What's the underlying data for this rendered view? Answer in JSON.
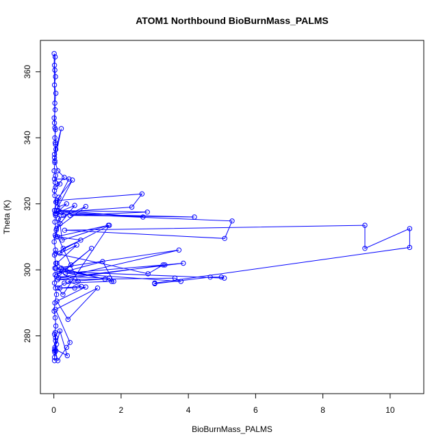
{
  "chart_data": {
    "type": "scatter",
    "title": "ATOM1 Northbound BioBurnMass_PALMS",
    "xlabel": "BioBurnMass_PALMS",
    "ylabel": "Theta (K)",
    "xlim": [
      -0.4,
      11.0
    ],
    "ylim": [
      262.5,
      369.5
    ],
    "xticks": [
      0,
      2,
      4,
      6,
      8,
      10
    ],
    "yticks": [
      280,
      300,
      320,
      340,
      360
    ],
    "grid": false,
    "legend": "none",
    "color": "#0000ff",
    "marker": "open-circle",
    "connected": true,
    "series": [
      {
        "x": [
          0.02,
          0.03,
          0.05,
          0.02,
          0.06,
          0.04,
          0.01,
          0.03,
          0.08,
          0.05,
          0.02,
          0.04,
          0.03,
          0.06,
          0.02,
          0.05,
          0.01,
          0.04,
          0.07,
          0.03,
          0.05,
          0.02,
          0.06,
          0.03,
          0.02,
          0.04,
          0.05,
          0.01,
          0.03,
          0.02,
          0.06,
          0.04,
          0.03,
          0.05,
          0.02,
          0.01,
          0.04,
          0.03,
          0.06,
          0.02,
          0.05,
          0.03,
          0.02,
          0.04,
          0.01,
          0.03,
          0.05,
          0.02,
          0.22,
          0.03,
          0.12,
          0.31,
          0.05,
          0.18,
          0.02,
          0.45,
          0.09,
          0.15,
          0.55,
          0.07,
          0.28,
          0.11,
          0.38,
          0.04,
          0.62,
          0.19,
          0.08,
          0.95,
          0.14,
          0.06,
          1.62,
          0.25,
          0.09,
          2.62,
          2.32,
          0.21,
          2.65,
          0.12,
          2.78,
          0.48,
          4.18,
          0.07,
          5.3,
          5.08,
          0.32,
          9.25,
          9.25,
          10.58,
          10.58,
          3.0,
          3.0,
          4.65,
          4.98,
          5.07,
          0.15,
          0.72,
          0.12,
          0.8,
          0.28,
          0.18,
          0.68,
          0.09,
          0.35,
          1.12,
          0.51,
          0.16,
          1.45,
          1.78,
          0.22,
          0.08,
          1.65,
          1.72,
          0.31,
          0.12,
          0.27,
          1.65,
          0.05,
          2.8,
          3.25,
          3.3,
          0.11,
          3.6,
          3.78,
          0.35,
          3.85,
          0.14,
          3.72,
          0.06,
          1.52,
          0.42,
          0.82,
          0.18,
          0.62,
          0.95,
          0.09,
          0.42,
          1.3,
          0.05,
          0.48,
          0.38,
          0.12,
          0.03,
          0.4,
          0.18,
          0.08,
          0.04,
          0.06,
          0.02,
          0.05,
          0.03,
          0.02
        ],
        "y": [
          272.5,
          275.0,
          278.5,
          280.5,
          283.0,
          285.5,
          287.5,
          290.0,
          292.5,
          294.5,
          296.0,
          298.5,
          300.5,
          302.0,
          304.5,
          306.0,
          308.5,
          310.5,
          312.0,
          314.5,
          316.5,
          318.0,
          320.5,
          322.5,
          324.0,
          326.5,
          328.5,
          330.0,
          332.5,
          334.0,
          336.5,
          338.5,
          340.0,
          342.5,
          344.5,
          346.0,
          348.5,
          350.5,
          353.5,
          356.0,
          358.5,
          360.5,
          362.0,
          364.5,
          365.5,
          343.0,
          338.0,
          335.0,
          342.8,
          333.0,
          330.0,
          328.0,
          325.0,
          326.0,
          327.5,
          327.5,
          320.5,
          322.0,
          327.2,
          318.0,
          316.5,
          319.0,
          320.0,
          317.0,
          319.5,
          314.0,
          312.5,
          319.2,
          315.5,
          310.0,
          313.5,
          309.0,
          321.0,
          323.0,
          319.0,
          317.5,
          316.0,
          318.0,
          317.5,
          316.5,
          316.0,
          317.0,
          314.8,
          309.5,
          312.0,
          313.5,
          306.5,
          312.5,
          306.8,
          296.0,
          295.8,
          297.8,
          297.8,
          297.5,
          299.5,
          296.5,
          310.0,
          309.0,
          306.5,
          305.0,
          307.5,
          302.0,
          300.0,
          306.5,
          301.5,
          299.0,
          302.5,
          296.5,
          300.5,
          298.0,
          297.5,
          296.5,
          296.0,
          294.5,
          292.5,
          313.5,
          305.0,
          298.8,
          301.5,
          301.5,
          297.0,
          297.5,
          296.5,
          299.0,
          302.0,
          297.5,
          306.0,
          300.5,
          297.2,
          296.5,
          295.0,
          294.5,
          294.5,
          294.8,
          290.5,
          285.0,
          294.5,
          288.0,
          278.0,
          276.5,
          272.5,
          276.0,
          274.0,
          281.5,
          277.5,
          281.0,
          275.5,
          273.5,
          279.5,
          276.5,
          275.5
        ]
      }
    ]
  }
}
